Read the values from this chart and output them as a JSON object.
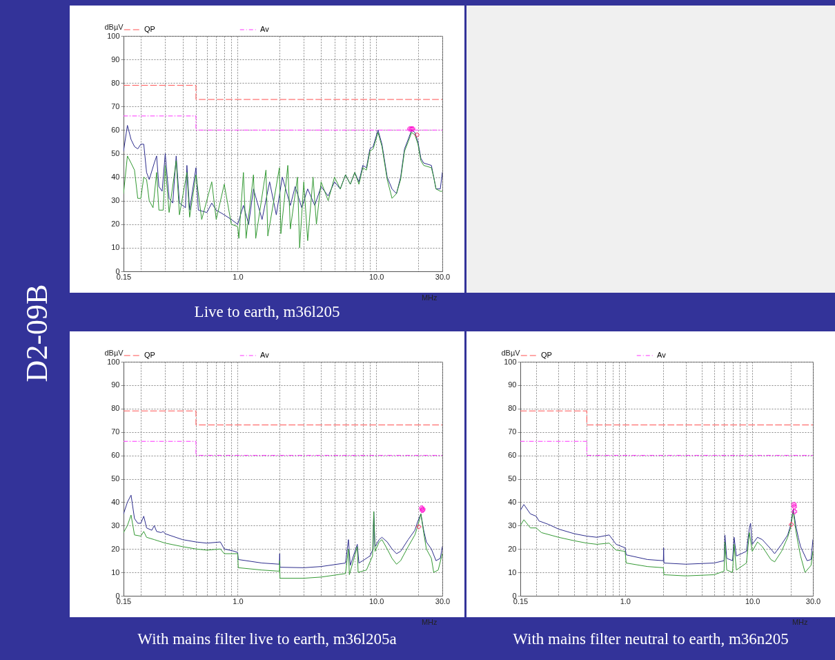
{
  "chart_data": [
    {
      "type": "line",
      "title": "Live to earth, m36l205",
      "annotations": [
        "D2-09B"
      ],
      "ylabel": "dBµV",
      "xlabel": "MHz",
      "log": "x",
      "grid": true,
      "legend": "top",
      "xlim": [
        0.15,
        30
      ],
      "ylim": [
        0,
        100
      ],
      "xticks": [
        {
          "value": 0.15,
          "label": "0.15"
        },
        {
          "value": 0.2,
          "label": null
        },
        {
          "value": 0.3,
          "label": null
        },
        {
          "value": 0.4,
          "label": null
        },
        {
          "value": 0.5,
          "label": null
        },
        {
          "value": 0.6,
          "label": null
        },
        {
          "value": 0.7,
          "label": null
        },
        {
          "value": 0.8,
          "label": null
        },
        {
          "value": 0.9,
          "label": null
        },
        {
          "value": 1,
          "label": "1.0"
        },
        {
          "value": 2,
          "label": null
        },
        {
          "value": 3,
          "label": null
        },
        {
          "value": 4,
          "label": null
        },
        {
          "value": 5,
          "label": null
        },
        {
          "value": 6,
          "label": null
        },
        {
          "value": 7,
          "label": null
        },
        {
          "value": 8,
          "label": null
        },
        {
          "value": 9,
          "label": null
        },
        {
          "value": 10,
          "label": "10.0"
        },
        {
          "value": 20,
          "label": null
        },
        {
          "value": 30,
          "label": "30.0"
        }
      ],
      "yticks": [
        0,
        10,
        20,
        30,
        40,
        50,
        60,
        70,
        80,
        90,
        100
      ],
      "series": [
        {
          "name": "QP",
          "type": "line",
          "line_style": "dashed",
          "color": "#ff5050",
          "x": [
            0.15,
            0.5,
            0.5,
            30
          ],
          "values": [
            79,
            79,
            73,
            73
          ]
        },
        {
          "name": "Av",
          "type": "line",
          "line_style": "dotted",
          "color": "#ff33ff",
          "x": [
            0.15,
            0.5,
            0.5,
            30
          ],
          "values": [
            66,
            66,
            60,
            60
          ]
        },
        {
          "type": "line",
          "line_style": "solid",
          "color": "#2b2b8c",
          "x": [
            0.15,
            0.16,
            0.17,
            0.18,
            0.19,
            0.2,
            0.21,
            0.22,
            0.23,
            0.25,
            0.26,
            0.27,
            0.285,
            0.3,
            0.32,
            0.34,
            0.36,
            0.38,
            0.42,
            0.43,
            0.45,
            0.5,
            0.52,
            0.6,
            0.65,
            0.7,
            0.8,
            0.9,
            1.0,
            1.1,
            1.2,
            1.3,
            1.5,
            1.7,
            1.9,
            2.1,
            2.4,
            2.6,
            2.9,
            3.2,
            3.6,
            4.0,
            4.5,
            5.0,
            5.5,
            6.0,
            6.5,
            7,
            7.5,
            8,
            8.5,
            9,
            9.5,
            10.3,
            11,
            12,
            13,
            14,
            15,
            16,
            17,
            18,
            19,
            20,
            21,
            22,
            25,
            26,
            27,
            29,
            30
          ],
          "values": [
            51,
            62,
            56,
            53,
            52,
            54,
            54,
            42,
            39,
            46,
            49,
            36,
            34,
            50,
            31,
            29,
            49,
            29,
            27,
            45,
            26,
            44,
            26,
            25,
            29,
            26,
            24,
            22,
            20,
            28,
            20,
            35,
            22,
            38,
            24,
            40,
            28,
            36,
            27,
            35,
            28,
            36,
            32,
            38,
            35,
            41,
            37,
            42,
            38,
            45,
            44,
            52,
            53,
            60,
            54,
            40,
            35,
            33,
            40,
            52,
            56,
            60,
            59,
            55,
            48,
            46,
            45,
            40,
            35,
            35,
            42
          ]
        },
        {
          "type": "line",
          "line_style": "solid",
          "color": "#339933",
          "x": [
            0.15,
            0.16,
            0.17,
            0.18,
            0.19,
            0.2,
            0.21,
            0.22,
            0.23,
            0.245,
            0.26,
            0.27,
            0.29,
            0.3,
            0.32,
            0.36,
            0.38,
            0.43,
            0.45,
            0.5,
            0.55,
            0.65,
            0.7,
            0.8,
            0.9,
            1.0,
            1.02,
            1.1,
            1.15,
            1.3,
            1.35,
            1.6,
            1.65,
            2.0,
            2.05,
            2.3,
            2.4,
            2.7,
            2.8,
            3.0,
            3.2,
            3.5,
            3.7,
            4.0,
            4.5,
            5,
            5.5,
            6,
            6.5,
            7,
            7.5,
            8,
            8.5,
            9,
            9.5,
            10.3,
            11,
            12,
            13,
            14,
            15,
            16,
            17,
            18,
            19,
            20,
            21,
            22,
            25,
            26,
            27,
            29,
            30
          ],
          "values": [
            33,
            49,
            46,
            43,
            31,
            31,
            40,
            39,
            30,
            27,
            42,
            26,
            26,
            45,
            25,
            47,
            24,
            42,
            23,
            41,
            22,
            38,
            22,
            37,
            20,
            19,
            14,
            42,
            14,
            41,
            14,
            43,
            15,
            44,
            16,
            45,
            18,
            40,
            10,
            38,
            13,
            40,
            20,
            38,
            30,
            40,
            35,
            41,
            37,
            42,
            37,
            44,
            43,
            51,
            52,
            59,
            53,
            39,
            31,
            33,
            39,
            51,
            55,
            59,
            58,
            54,
            47,
            45,
            44,
            40,
            35,
            34,
            34
          ]
        },
        {
          "type": "scatter",
          "marker": "cross",
          "color": "#ff00cc",
          "x": [
            17.5,
            18,
            18.3
          ],
          "values": [
            60.5,
            60.5,
            60.5
          ]
        },
        {
          "type": "scatter",
          "marker": "diamond",
          "color": "#ff3366",
          "x": [
            19.7
          ],
          "values": [
            58
          ]
        }
      ]
    },
    {
      "type": "line",
      "title": "With mains filter live to earth, m36l205a",
      "ylabel": "dBµV",
      "xlabel": "MHz",
      "log": "x",
      "grid": true,
      "legend": "top",
      "xlim": [
        0.15,
        30
      ],
      "ylim": [
        0,
        100
      ],
      "xticks": [
        {
          "value": 0.15,
          "label": "0.15"
        },
        {
          "value": 0.2,
          "label": null
        },
        {
          "value": 0.3,
          "label": null
        },
        {
          "value": 0.4,
          "label": null
        },
        {
          "value": 0.5,
          "label": null
        },
        {
          "value": 0.6,
          "label": null
        },
        {
          "value": 0.7,
          "label": null
        },
        {
          "value": 0.8,
          "label": null
        },
        {
          "value": 0.9,
          "label": null
        },
        {
          "value": 1,
          "label": "1.0"
        },
        {
          "value": 2,
          "label": null
        },
        {
          "value": 3,
          "label": null
        },
        {
          "value": 4,
          "label": null
        },
        {
          "value": 5,
          "label": null
        },
        {
          "value": 6,
          "label": null
        },
        {
          "value": 7,
          "label": null
        },
        {
          "value": 8,
          "label": null
        },
        {
          "value": 9,
          "label": null
        },
        {
          "value": 10,
          "label": "10.0"
        },
        {
          "value": 20,
          "label": null
        },
        {
          "value": 30,
          "label": "30.0"
        }
      ],
      "yticks": [
        0,
        10,
        20,
        30,
        40,
        50,
        60,
        70,
        80,
        90,
        100
      ],
      "series": [
        {
          "name": "QP",
          "type": "line",
          "line_style": "dashed",
          "color": "#ff5050",
          "x": [
            0.15,
            0.5,
            0.5,
            30
          ],
          "values": [
            79,
            79,
            73,
            73
          ]
        },
        {
          "name": "Av",
          "type": "line",
          "line_style": "dotted",
          "color": "#ff33ff",
          "x": [
            0.15,
            0.5,
            0.5,
            30
          ],
          "values": [
            66,
            66,
            60,
            60
          ]
        },
        {
          "type": "line",
          "line_style": "solid",
          "color": "#2b2b8c",
          "x": [
            0.15,
            0.16,
            0.17,
            0.18,
            0.19,
            0.2,
            0.21,
            0.22,
            0.24,
            0.25,
            0.26,
            0.28,
            0.29,
            0.3,
            0.4,
            0.5,
            0.6,
            0.75,
            0.8,
            0.95,
            1.0,
            1.01,
            1.5,
            2.0,
            2.01,
            2.02,
            3,
            4,
            6,
            6.3,
            6.5,
            7.3,
            7.5,
            8,
            9,
            9.5,
            9.6,
            9.8,
            10.5,
            11,
            12,
            13,
            14,
            15,
            17,
            19,
            20,
            21,
            22,
            23,
            25,
            27,
            29,
            30
          ],
          "values": [
            35,
            40,
            43,
            33,
            31,
            31,
            34,
            29,
            28,
            30,
            27.5,
            27,
            27.5,
            26.5,
            24,
            23,
            22.5,
            23,
            20,
            19,
            18.5,
            15.5,
            14,
            13.5,
            18,
            12.2,
            12,
            12.5,
            14,
            24,
            13,
            22,
            14,
            15,
            17,
            20,
            36,
            21,
            24,
            25,
            23,
            20,
            18,
            19,
            24,
            28,
            32,
            35,
            28,
            23,
            20,
            15,
            16,
            21
          ]
        },
        {
          "type": "line",
          "line_style": "solid",
          "color": "#339933",
          "x": [
            0.15,
            0.16,
            0.17,
            0.18,
            0.2,
            0.21,
            0.22,
            0.25,
            0.3,
            0.4,
            0.5,
            0.6,
            0.75,
            0.8,
            1.0,
            1.01,
            1.5,
            2.0,
            2.01,
            2.02,
            3,
            4,
            6,
            6.3,
            6.4,
            7.3,
            7.4,
            8.5,
            9.4,
            9.6,
            9.8,
            10.5,
            11,
            12,
            13,
            14,
            15,
            17,
            19,
            20,
            21,
            22,
            23,
            25,
            26,
            28,
            30
          ],
          "values": [
            27,
            30,
            34.5,
            26,
            25.5,
            27.5,
            25,
            24,
            22.5,
            21,
            20,
            19.5,
            20,
            18,
            18,
            12,
            11,
            10.5,
            15,
            7.5,
            7.5,
            8,
            9.5,
            20,
            9,
            21,
            10,
            11,
            17,
            36,
            19,
            23,
            24,
            20,
            16,
            13.5,
            15,
            21,
            26,
            30,
            35,
            27,
            20,
            16,
            10,
            11,
            18
          ]
        },
        {
          "type": "scatter",
          "marker": "cross",
          "color": "#ff00cc",
          "x": [
            21.3,
            21.5,
            21.7
          ],
          "values": [
            37.5,
            36.5,
            37
          ]
        },
        {
          "type": "scatter",
          "marker": "diamond",
          "color": "#ff3366",
          "x": [
            20.3
          ],
          "values": [
            29.5
          ]
        }
      ]
    },
    {
      "type": "line",
      "title": "With mains filter neutral to earth, m36n205",
      "ylabel": "dBµV",
      "xlabel": "MHz",
      "log": "x",
      "grid": true,
      "legend": "top",
      "xlim": [
        0.15,
        30
      ],
      "ylim": [
        0,
        100
      ],
      "xticks": [
        {
          "value": 0.15,
          "label": "0.15"
        },
        {
          "value": 0.2,
          "label": null
        },
        {
          "value": 0.3,
          "label": null
        },
        {
          "value": 0.4,
          "label": null
        },
        {
          "value": 0.5,
          "label": null
        },
        {
          "value": 0.6,
          "label": null
        },
        {
          "value": 0.7,
          "label": null
        },
        {
          "value": 0.8,
          "label": null
        },
        {
          "value": 0.9,
          "label": null
        },
        {
          "value": 1,
          "label": "1.0"
        },
        {
          "value": 2,
          "label": null
        },
        {
          "value": 3,
          "label": null
        },
        {
          "value": 4,
          "label": null
        },
        {
          "value": 5,
          "label": null
        },
        {
          "value": 6,
          "label": null
        },
        {
          "value": 7,
          "label": null
        },
        {
          "value": 8,
          "label": null
        },
        {
          "value": 9,
          "label": null
        },
        {
          "value": 10,
          "label": "10.0"
        },
        {
          "value": 20,
          "label": null
        },
        {
          "value": 30,
          "label": "30.0"
        }
      ],
      "yticks": [
        0,
        10,
        20,
        30,
        40,
        50,
        60,
        70,
        80,
        90,
        100
      ],
      "series": [
        {
          "name": "QP",
          "type": "line",
          "line_style": "dashed",
          "color": "#ff5050",
          "x": [
            0.15,
            0.5,
            0.5,
            30
          ],
          "values": [
            79,
            79,
            73,
            73
          ]
        },
        {
          "name": "Av",
          "type": "line",
          "line_style": "dotted",
          "color": "#ff33ff",
          "x": [
            0.15,
            0.5,
            0.5,
            30
          ],
          "values": [
            66,
            66,
            60,
            60
          ]
        },
        {
          "type": "line",
          "line_style": "solid",
          "color": "#2b2b8c",
          "x": [
            0.15,
            0.16,
            0.18,
            0.2,
            0.21,
            0.25,
            0.3,
            0.4,
            0.5,
            0.6,
            0.75,
            0.85,
            1.0,
            1.02,
            1.5,
            2.0,
            2.01,
            2.02,
            3,
            5,
            6,
            6.1,
            6.3,
            7,
            7.2,
            7.5,
            9,
            9.5,
            9.7,
            10,
            11,
            12,
            14,
            15,
            17,
            19,
            20,
            21,
            22,
            23,
            24,
            27,
            29,
            30
          ],
          "values": [
            36.5,
            39,
            35,
            34,
            32,
            30.5,
            28.5,
            26.5,
            25.5,
            25,
            26,
            22,
            20.5,
            17.5,
            15.5,
            15,
            20.5,
            14,
            13.5,
            14,
            15,
            26,
            16,
            15,
            25,
            17,
            19,
            29,
            31,
            22,
            25,
            24,
            20,
            18,
            22,
            26,
            30,
            37,
            30,
            25,
            21,
            15,
            15.5,
            24
          ]
        },
        {
          "type": "line",
          "line_style": "solid",
          "color": "#339933",
          "x": [
            0.15,
            0.16,
            0.18,
            0.2,
            0.22,
            0.3,
            0.4,
            0.5,
            0.6,
            0.75,
            0.85,
            1.0,
            1.02,
            1.5,
            2.0,
            2.02,
            3,
            5,
            6,
            6.1,
            6.3,
            7,
            7.2,
            7.5,
            9,
            9.5,
            10,
            11,
            12,
            14,
            15,
            17,
            19,
            20,
            21,
            22,
            23,
            24,
            26,
            29,
            30
          ],
          "values": [
            30,
            32.5,
            29,
            29,
            27,
            25,
            23.5,
            22.5,
            22,
            22.5,
            19.5,
            19,
            14,
            12.5,
            12,
            9,
            8.5,
            9,
            10.5,
            23,
            11,
            10,
            22,
            11,
            14,
            27,
            19,
            23,
            21,
            15.5,
            14.5,
            19,
            25,
            29,
            36,
            28,
            22,
            17,
            10,
            13,
            19
          ]
        },
        {
          "type": "scatter",
          "marker": "cross",
          "color": "#ff00cc",
          "x": [
            21.3,
            21.4,
            21.5
          ],
          "values": [
            39,
            38,
            36
          ]
        },
        {
          "type": "scatter",
          "marker": "diamond",
          "color": "#ff3366",
          "x": [
            20.3
          ],
          "values": [
            30.5
          ]
        }
      ]
    }
  ]
}
